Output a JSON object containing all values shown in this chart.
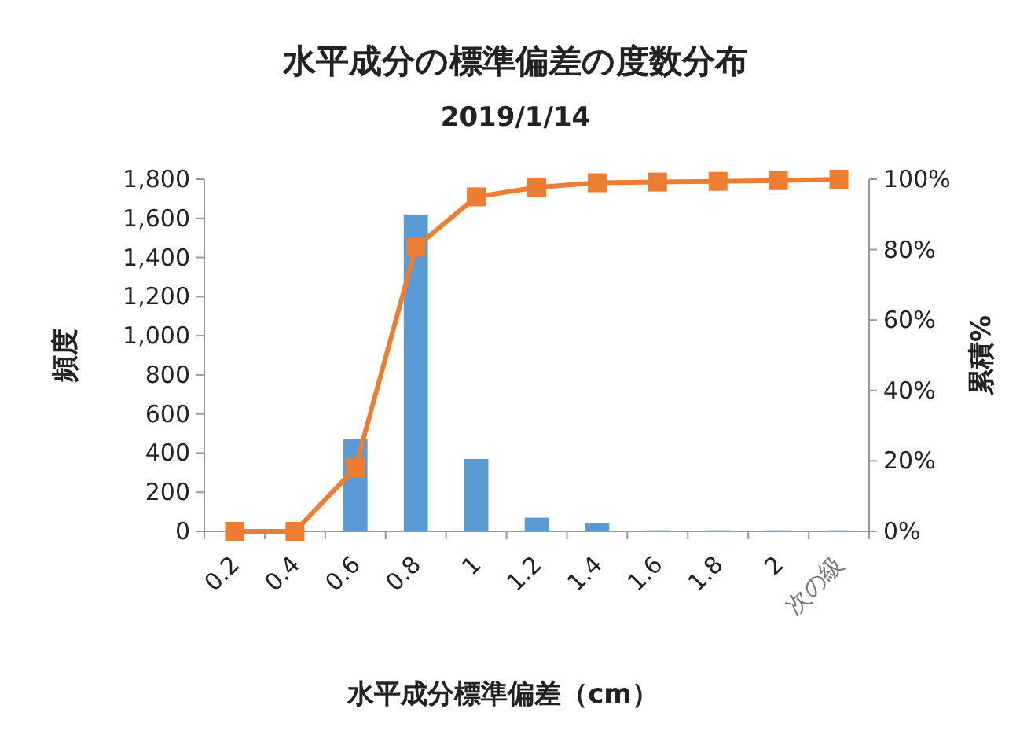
{
  "chart_data": {
    "type": "bar",
    "title": "水平成分の標準偏差の度数分布",
    "subtitle": "2019/1/14",
    "xlabel": "水平成分標準偏差（cm）",
    "ylabel": "頻度",
    "y2label": "累積%",
    "categories": [
      "0.2",
      "0.4",
      "0.6",
      "0.8",
      "1",
      "1.2",
      "1.4",
      "1.6",
      "1.8",
      "2",
      "次の級"
    ],
    "series": [
      {
        "color": "#5b9bd5",
        "values": [
          0,
          0,
          470,
          1620,
          370,
          70,
          40,
          5,
          5,
          5,
          5
        ]
      },
      {
        "type": "line",
        "axis": "y2",
        "color": "#ed7d31",
        "marker": "square",
        "values": [
          0,
          0,
          18,
          80.7,
          95,
          97.7,
          99,
          99.2,
          99.4,
          99.6,
          100
        ]
      }
    ],
    "ylim": [
      0,
      1800
    ],
    "yticks": [
      0,
      200,
      400,
      600,
      800,
      {
        "value": 1000,
        "label": "1,000"
      },
      {
        "value": 1200,
        "label": "1,200"
      },
      {
        "value": 1400,
        "label": "1,400"
      },
      {
        "value": 1600,
        "label": "1,600"
      },
      {
        "value": 1800,
        "label": "1,800"
      }
    ],
    "y2lim": [
      0,
      100
    ],
    "y2ticks": [
      {
        "value": 0,
        "label": "0%"
      },
      {
        "value": 20,
        "label": "20%"
      },
      {
        "value": 40,
        "label": "40%"
      },
      {
        "value": 60,
        "label": "60%"
      },
      {
        "value": 80,
        "label": "80%"
      },
      {
        "value": 100,
        "label": "100%"
      }
    ],
    "grid": false
  }
}
